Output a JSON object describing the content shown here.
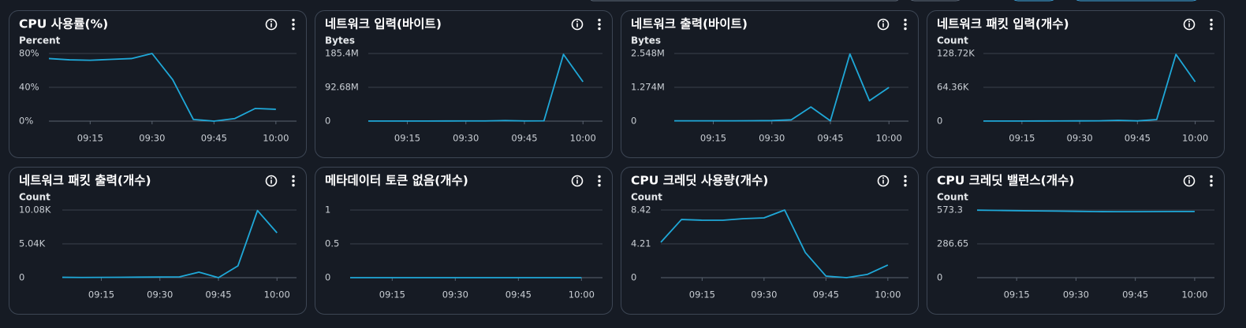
{
  "chart_data": [
    {
      "type": "line",
      "title": "CPU 사용률(%)",
      "y_label": "Percent",
      "x": [
        "09:05",
        "09:10",
        "09:15",
        "09:20",
        "09:25",
        "09:30",
        "09:35",
        "09:40",
        "09:45",
        "09:50",
        "09:55",
        "10:00"
      ],
      "values": [
        74,
        72.5,
        72,
        73,
        74,
        80,
        49,
        2,
        0,
        3,
        15,
        14
      ],
      "color": "#1fa8d8",
      "xlim": [
        "09:05",
        "10:05"
      ],
      "xticks": [
        "09:15",
        "09:30",
        "09:45",
        "10:00"
      ],
      "ylim": [
        0,
        80
      ],
      "yticks": [
        {
          "value": 0,
          "label": "0%"
        },
        {
          "value": 40,
          "label": "40%"
        },
        {
          "value": 80,
          "label": "80%"
        }
      ],
      "grid": true
    },
    {
      "type": "line",
      "title": "네트워크 입력(바이트)",
      "y_label": "Bytes",
      "x": [
        "09:05",
        "09:10",
        "09:15",
        "09:20",
        "09:25",
        "09:30",
        "09:35",
        "09:40",
        "09:45",
        "09:50",
        "09:55",
        "10:00"
      ],
      "values": [
        200000,
        200000,
        200000,
        300000,
        400000,
        500000,
        600000,
        1500000,
        500000,
        800000,
        183000000,
        107800000
      ],
      "color": "#1fa8d8",
      "xlim": [
        "09:05",
        "10:05"
      ],
      "xticks": [
        "09:15",
        "09:30",
        "09:45",
        "10:00"
      ],
      "ylim": [
        0,
        185360000
      ],
      "yticks": [
        0,
        {
          "value": 92680000,
          "label": "92.68M"
        },
        {
          "value": 185400000,
          "label": "185.4M"
        }
      ],
      "grid": true
    },
    {
      "type": "line",
      "title": "네트워크 출력(바이트)",
      "y_label": "Bytes",
      "x": [
        "09:05",
        "09:10",
        "09:15",
        "09:20",
        "09:25",
        "09:30",
        "09:35",
        "09:40",
        "09:45",
        "09:50",
        "09:55",
        "10:00"
      ],
      "values": [
        10000,
        10000,
        10000,
        10000,
        15000,
        20000,
        50000,
        533000,
        10000,
        2530000,
        770000,
        1270000
      ],
      "color": "#1fa8d8",
      "xlim": [
        "09:05",
        "10:05"
      ],
      "xticks": [
        "09:15",
        "09:30",
        "09:45",
        "10:00"
      ],
      "ylim": [
        0,
        2548000
      ],
      "yticks": [
        0,
        {
          "value": 1274000,
          "label": "1.274M"
        },
        {
          "value": 2548000,
          "label": "2.548M"
        }
      ],
      "grid": true
    },
    {
      "type": "line",
      "title": "네트워크 패킷 입력(개수)",
      "y_label": "Count",
      "x": [
        "09:05",
        "09:10",
        "09:15",
        "09:20",
        "09:25",
        "09:30",
        "09:35",
        "09:40",
        "09:45",
        "09:50",
        "09:55",
        "10:00"
      ],
      "values": [
        200,
        200,
        200,
        300,
        400,
        500,
        600,
        1500,
        500,
        3000,
        127000,
        74800
      ],
      "color": "#1fa8d8",
      "xlim": [
        "09:05",
        "10:05"
      ],
      "xticks": [
        "09:15",
        "09:30",
        "09:45",
        "10:00"
      ],
      "ylim": [
        0,
        128720
      ],
      "yticks": [
        0,
        {
          "value": 64360,
          "label": "64.36K"
        },
        {
          "value": 128720,
          "label": "128.72K"
        }
      ],
      "grid": true
    },
    {
      "type": "line",
      "title": "네트워크 패킷 출력(개수)",
      "y_label": "Count",
      "x": [
        "09:05",
        "09:10",
        "09:15",
        "09:20",
        "09:25",
        "09:30",
        "09:35",
        "09:40",
        "09:45",
        "09:50",
        "09:55",
        "10:00"
      ],
      "values": [
        50,
        30,
        40,
        60,
        80,
        100,
        120,
        820,
        0,
        1760,
        10000,
        6680
      ],
      "color": "#1fa8d8",
      "xlim": [
        "09:05",
        "10:05"
      ],
      "xticks": [
        "09:15",
        "09:30",
        "09:45",
        "10:00"
      ],
      "ylim": [
        0,
        10080
      ],
      "yticks": [
        0,
        {
          "value": 5040,
          "label": "5.04K"
        },
        {
          "value": 10080,
          "label": "10.08K"
        }
      ],
      "grid": true
    },
    {
      "type": "line",
      "title": "메타데이터 토큰 없음(개수)",
      "x": [
        "09:05",
        "09:10",
        "09:15",
        "09:20",
        "09:25",
        "09:30",
        "09:35",
        "09:40",
        "09:45",
        "09:50",
        "09:55",
        "10:00"
      ],
      "values": [
        0,
        0,
        0,
        0,
        0,
        0,
        0,
        0,
        0,
        0,
        0,
        0
      ],
      "color": "#1fa8d8",
      "xlim": [
        "09:05",
        "10:05"
      ],
      "xticks": [
        "09:15",
        "09:30",
        "09:45",
        "10:00"
      ],
      "ylim": [
        0,
        1
      ],
      "yticks": [
        0,
        0.5,
        1
      ],
      "grid": true
    },
    {
      "type": "line",
      "title": "CPU 크레딧 사용량(개수)",
      "y_label": "Count",
      "x": [
        "09:05",
        "09:10",
        "09:15",
        "09:20",
        "09:25",
        "09:30",
        "09:35",
        "09:40",
        "09:45",
        "09:50",
        "09:55",
        "10:00"
      ],
      "values": [
        4.41,
        7.24,
        7.15,
        7.15,
        7.34,
        7.44,
        8.42,
        3.13,
        0.2,
        0,
        0.4,
        1.57
      ],
      "color": "#1fa8d8",
      "xlim": [
        "09:05",
        "10:05"
      ],
      "xticks": [
        "09:15",
        "09:30",
        "09:45",
        "10:00"
      ],
      "ylim": [
        0,
        8.42
      ],
      "yticks": [
        0,
        4.21,
        8.42
      ],
      "grid": true
    },
    {
      "type": "line",
      "title": "CPU 크레딧 밸런스(개수)",
      "y_label": "Count",
      "x": [
        "09:05",
        "09:10",
        "09:15",
        "09:20",
        "09:25",
        "09:30",
        "09:35",
        "09:40",
        "09:45",
        "09:50",
        "09:55",
        "10:00"
      ],
      "values": [
        572,
        570,
        568,
        566,
        564,
        562,
        560,
        559,
        559,
        560,
        561,
        561
      ],
      "color": "#1fa8d8",
      "xlim": [
        "09:05",
        "10:05"
      ],
      "xticks": [
        "09:15",
        "09:30",
        "09:45",
        "10:00"
      ],
      "ylim": [
        0,
        573.3
      ],
      "yticks": [
        0,
        286.65,
        573.3
      ],
      "grid": true
    }
  ]
}
